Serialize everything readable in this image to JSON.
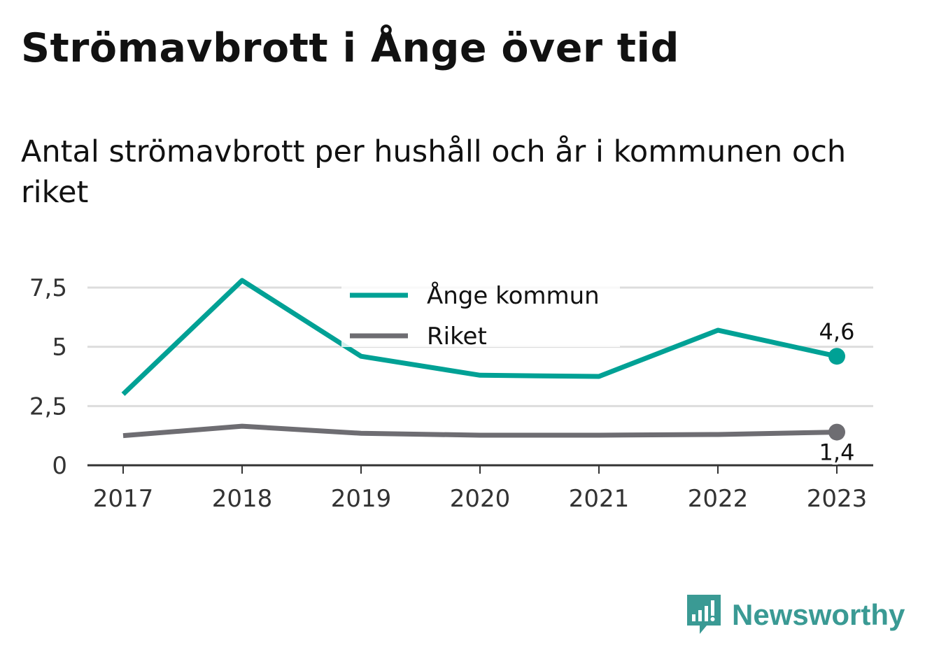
{
  "title": "Strömavbrott i Ånge över tid",
  "subtitle": "Antal strömavbrott per hushåll och år i kommunen och riket",
  "brand": "Newsworthy",
  "chart_data": {
    "type": "line",
    "x": [
      "2017",
      "2018",
      "2019",
      "2020",
      "2021",
      "2022",
      "2023"
    ],
    "series": [
      {
        "name": "Ånge kommun",
        "color": "#00a195",
        "values": [
          3.0,
          7.8,
          4.6,
          3.8,
          3.75,
          5.7,
          4.6
        ],
        "end_label": "4,6"
      },
      {
        "name": "Riket",
        "color": "#6e6d72",
        "values": [
          1.25,
          1.65,
          1.35,
          1.27,
          1.27,
          1.3,
          1.4
        ],
        "end_label": "1,4"
      }
    ],
    "yticks": [
      0,
      2.5,
      5,
      7.5
    ],
    "ytick_labels": [
      "0",
      "2,5",
      "5",
      "7,5"
    ],
    "ylim": [
      0,
      7.8
    ],
    "grid": true,
    "legend_position": "top-center"
  },
  "colors": {
    "brand": "#3a9a94",
    "grid": "#dddddd",
    "axis": "#333333"
  }
}
